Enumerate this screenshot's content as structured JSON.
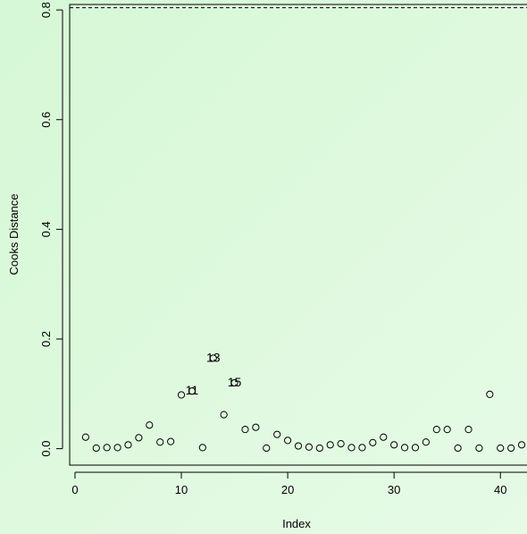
{
  "chart_data": {
    "type": "scatter",
    "title": "",
    "xlabel": "Index",
    "ylabel": "Cooks Distance",
    "xlim": [
      -0.5,
      42.5
    ],
    "ylim": [
      -0.03,
      0.81
    ],
    "x_ticks": [
      0,
      10,
      20,
      30,
      40
    ],
    "y_ticks": [
      0.0,
      0.2,
      0.4,
      0.6,
      0.8
    ],
    "y_tick_labels": [
      "0.0",
      "0.2",
      "0.4",
      "0.6",
      "0.8"
    ],
    "reference_line": {
      "y": 0.804,
      "style": "dashed"
    },
    "grid": false,
    "x": [
      1,
      2,
      3,
      4,
      5,
      6,
      7,
      8,
      9,
      10,
      11,
      12,
      13,
      14,
      15,
      16,
      17,
      18,
      19,
      20,
      21,
      22,
      23,
      24,
      25,
      26,
      27,
      28,
      29,
      30,
      31,
      32,
      33,
      34,
      35,
      36,
      37,
      38,
      39,
      40,
      41,
      42
    ],
    "y": [
      0.021,
      0.001,
      0.002,
      0.002,
      0.007,
      0.02,
      0.043,
      0.012,
      0.013,
      0.098,
      0.105,
      0.002,
      0.165,
      0.062,
      0.12,
      0.035,
      0.039,
      0.001,
      0.026,
      0.015,
      0.005,
      0.003,
      0.001,
      0.007,
      0.009,
      0.002,
      0.002,
      0.011,
      0.021,
      0.007,
      0.002,
      0.002,
      0.012,
      0.035,
      0.035,
      0.001,
      0.035,
      0.001,
      0.099,
      0.001,
      0.001,
      0.007
    ],
    "annotations": [
      {
        "index": 11,
        "label": "11"
      },
      {
        "index": 13,
        "label": "13"
      },
      {
        "index": 15,
        "label": "15"
      }
    ]
  }
}
